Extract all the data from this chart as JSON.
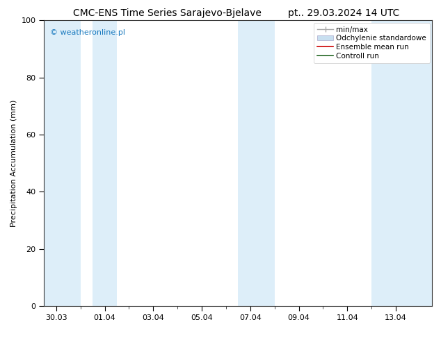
{
  "title_left": "CMC-ENS Time Series Sarajevo-Bjelave",
  "title_right": "pt.. 29.03.2024 14 UTC",
  "ylabel": "Precipitation Accumulation (mm)",
  "watermark": "© weatheronline.pl",
  "watermark_color": "#1a7abf",
  "ylim": [
    0,
    100
  ],
  "xlim_start": -0.5,
  "xlim_end": 15.5,
  "xtick_positions": [
    0,
    2,
    4,
    6,
    8,
    10,
    12,
    14
  ],
  "xtick_labels": [
    "30.03",
    "01.04",
    "03.04",
    "05.04",
    "07.04",
    "09.04",
    "11.04",
    "13.04"
  ],
  "ytick_positions": [
    0,
    20,
    40,
    60,
    80,
    100
  ],
  "bg_color": "#ffffff",
  "plot_bg_color": "#ffffff",
  "band_color": "#ddeef9",
  "shaded_bands": [
    {
      "x_start": -0.5,
      "x_end": 1.0
    },
    {
      "x_start": 1.5,
      "x_end": 2.5
    },
    {
      "x_start": 7.5,
      "x_end": 9.0
    },
    {
      "x_start": 13.0,
      "x_end": 15.5
    }
  ],
  "legend_minmax_color": "#aaaaaa",
  "legend_std_color": "#c8dff0",
  "legend_ensemble_color": "#cc0000",
  "legend_control_color": "#226622",
  "title_fontsize": 10,
  "axis_label_fontsize": 8,
  "tick_fontsize": 8,
  "legend_fontsize": 7.5
}
